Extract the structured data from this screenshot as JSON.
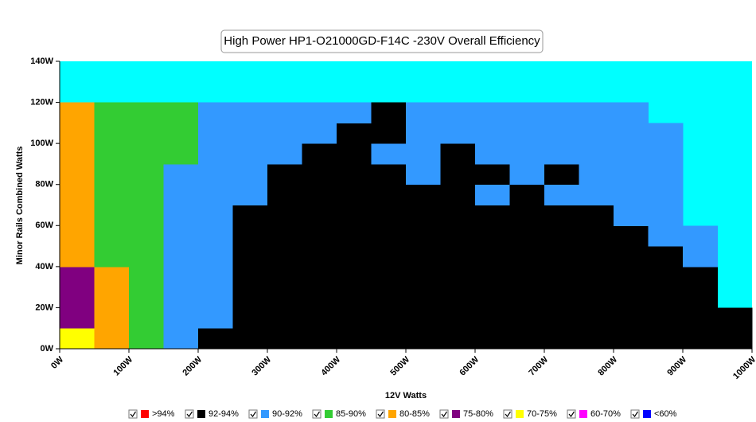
{
  "chart_data": {
    "type": "heatmap",
    "title": "High Power HP1-O21000GD-F14C  -230V Overall Efficiency",
    "xlabel": "12V Watts",
    "ylabel": "Minor Rails Combined Watts",
    "xlim": [
      0,
      1000
    ],
    "ylim": [
      0,
      140
    ],
    "xticks": [
      {
        "value": 0,
        "label": "0W"
      },
      {
        "value": 100,
        "label": "100W"
      },
      {
        "value": 200,
        "label": "200W"
      },
      {
        "value": 300,
        "label": "300W"
      },
      {
        "value": 400,
        "label": "400W"
      },
      {
        "value": 500,
        "label": "500W"
      },
      {
        "value": 600,
        "label": "600W"
      },
      {
        "value": 700,
        "label": "700W"
      },
      {
        "value": 800,
        "label": "800W"
      },
      {
        "value": 900,
        "label": "900W"
      },
      {
        "value": 1000,
        "label": "1000W"
      }
    ],
    "yticks": [
      {
        "value": 0,
        "label": "0W"
      },
      {
        "value": 20,
        "label": "20W"
      },
      {
        "value": 40,
        "label": "40W"
      },
      {
        "value": 60,
        "label": "60W"
      },
      {
        "value": 80,
        "label": "80W"
      },
      {
        "value": 100,
        "label": "100W"
      },
      {
        "value": 120,
        "label": "120W"
      },
      {
        "value": 140,
        "label": "140W"
      }
    ],
    "background_color": "#00ffff",
    "x_bins": [
      0,
      50,
      100,
      150,
      200,
      250,
      300,
      350,
      400,
      450,
      500,
      550,
      600,
      650,
      700,
      750,
      800,
      850,
      900,
      950,
      1000
    ],
    "y_bins": [
      0,
      10,
      20,
      30,
      40,
      50,
      60,
      70,
      80,
      90,
      100,
      110,
      120
    ],
    "z": [
      [
        6,
        4,
        3,
        2,
        1,
        1,
        1,
        1,
        1,
        1,
        1,
        1,
        1,
        1,
        1,
        1,
        1,
        1,
        1,
        1
      ],
      [
        5,
        4,
        3,
        2,
        2,
        1,
        1,
        1,
        1,
        1,
        1,
        1,
        1,
        1,
        1,
        1,
        1,
        1,
        1,
        1
      ],
      [
        5,
        4,
        3,
        2,
        2,
        1,
        1,
        1,
        1,
        1,
        1,
        1,
        1,
        1,
        1,
        1,
        1,
        1,
        1,
        null
      ],
      [
        5,
        4,
        3,
        2,
        2,
        1,
        1,
        1,
        1,
        1,
        1,
        1,
        1,
        1,
        1,
        1,
        1,
        1,
        1,
        null
      ],
      [
        4,
        3,
        3,
        2,
        2,
        1,
        1,
        1,
        1,
        1,
        1,
        1,
        1,
        1,
        1,
        1,
        1,
        1,
        2,
        null
      ],
      [
        4,
        3,
        3,
        2,
        2,
        1,
        1,
        1,
        1,
        1,
        1,
        1,
        1,
        1,
        1,
        1,
        1,
        2,
        2,
        null
      ],
      [
        4,
        3,
        3,
        2,
        2,
        1,
        1,
        1,
        1,
        1,
        1,
        1,
        1,
        1,
        1,
        1,
        2,
        2,
        null,
        null
      ],
      [
        4,
        3,
        3,
        2,
        2,
        2,
        1,
        1,
        1,
        1,
        1,
        1,
        2,
        1,
        2,
        2,
        2,
        2,
        null,
        null
      ],
      [
        4,
        3,
        3,
        2,
        2,
        2,
        1,
        1,
        1,
        1,
        2,
        1,
        1,
        2,
        1,
        2,
        2,
        2,
        null,
        null
      ],
      [
        4,
        3,
        3,
        3,
        2,
        2,
        2,
        1,
        1,
        2,
        2,
        1,
        2,
        2,
        2,
        2,
        2,
        2,
        null,
        null
      ],
      [
        4,
        3,
        3,
        3,
        2,
        2,
        2,
        2,
        1,
        1,
        2,
        2,
        2,
        2,
        2,
        2,
        2,
        2,
        null,
        null
      ],
      [
        4,
        3,
        3,
        3,
        2,
        2,
        2,
        2,
        2,
        1,
        2,
        2,
        2,
        2,
        2,
        2,
        2,
        null,
        null,
        null
      ]
    ],
    "series": [
      {
        "name": ">94%",
        "color": "#ff0000"
      },
      {
        "name": "92-94%",
        "color": "#000000"
      },
      {
        "name": "90-92%",
        "color": "#3399ff"
      },
      {
        "name": "85-90%",
        "color": "#33cc33"
      },
      {
        "name": "80-85%",
        "color": "#ffa500"
      },
      {
        "name": "75-80%",
        "color": "#800080"
      },
      {
        "name": "70-75%",
        "color": "#ffff00"
      },
      {
        "name": "60-70%",
        "color": "#ff00ff"
      },
      {
        "name": "<60%",
        "color": "#0000ff"
      }
    ]
  }
}
